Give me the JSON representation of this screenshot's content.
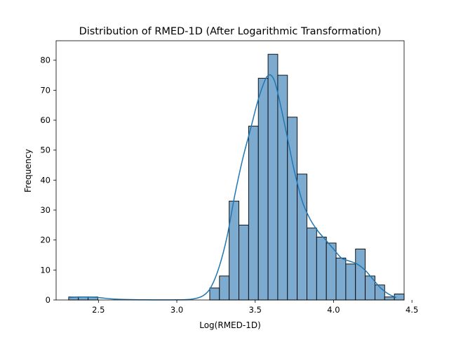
{
  "chart_data": {
    "type": "bar",
    "title": "Distribution of RMED-1D (After Logarithmic Transformation)",
    "xlabel": "Log(RMED-1D)",
    "ylabel": "Frequency",
    "xlim": [
      2.23,
      4.45
    ],
    "ylim": [
      0,
      86.5
    ],
    "xticks": [
      2.5,
      3.0,
      3.5,
      4.0,
      4.5
    ],
    "xtick_labels": [
      "2.5",
      "3.0",
      "3.5",
      "4.0",
      "4.5"
    ],
    "yticks": [
      0,
      10,
      20,
      30,
      40,
      50,
      60,
      70,
      80
    ],
    "ytick_labels": [
      "0",
      "10",
      "20",
      "30",
      "40",
      "50",
      "60",
      "70",
      "80"
    ],
    "grid": false,
    "bar_fill": "#7dabd0",
    "bar_edge": "#000000",
    "kde_color": "#1f77b4",
    "bins": [
      {
        "x0": 2.31,
        "x1": 2.372,
        "count": 1
      },
      {
        "x0": 2.372,
        "x1": 2.434,
        "count": 1
      },
      {
        "x0": 2.434,
        "x1": 2.496,
        "count": 1
      },
      {
        "x0": 3.21,
        "x1": 3.272,
        "count": 4
      },
      {
        "x0": 3.272,
        "x1": 3.334,
        "count": 8
      },
      {
        "x0": 3.334,
        "x1": 3.396,
        "count": 33
      },
      {
        "x0": 3.396,
        "x1": 3.458,
        "count": 25
      },
      {
        "x0": 3.458,
        "x1": 3.52,
        "count": 58
      },
      {
        "x0": 3.52,
        "x1": 3.582,
        "count": 74
      },
      {
        "x0": 3.582,
        "x1": 3.644,
        "count": 82
      },
      {
        "x0": 3.644,
        "x1": 3.706,
        "count": 75
      },
      {
        "x0": 3.706,
        "x1": 3.768,
        "count": 61
      },
      {
        "x0": 3.768,
        "x1": 3.83,
        "count": 42
      },
      {
        "x0": 3.83,
        "x1": 3.892,
        "count": 24
      },
      {
        "x0": 3.892,
        "x1": 3.954,
        "count": 21
      },
      {
        "x0": 3.954,
        "x1": 4.016,
        "count": 19
      },
      {
        "x0": 4.016,
        "x1": 4.078,
        "count": 14
      },
      {
        "x0": 4.078,
        "x1": 4.14,
        "count": 12
      },
      {
        "x0": 4.14,
        "x1": 4.202,
        "count": 17
      },
      {
        "x0": 4.202,
        "x1": 4.264,
        "count": 8
      },
      {
        "x0": 4.264,
        "x1": 4.326,
        "count": 5
      },
      {
        "x0": 4.326,
        "x1": 4.388,
        "count": 1
      },
      {
        "x0": 4.388,
        "x1": 4.45,
        "count": 2
      }
    ],
    "kde": {
      "x": [
        2.31,
        2.4,
        2.5,
        2.6,
        2.8,
        3.0,
        3.1,
        3.17,
        3.22,
        3.27,
        3.32,
        3.37,
        3.42,
        3.47,
        3.52,
        3.56,
        3.58,
        3.6,
        3.62,
        3.64,
        3.67,
        3.71,
        3.75,
        3.8,
        3.85,
        3.9,
        3.95,
        4.0,
        4.05,
        4.1,
        4.15,
        4.2,
        4.25,
        4.3,
        4.35,
        4.4
      ],
      "y": [
        0.8,
        1.0,
        0.8,
        0.3,
        0.05,
        0.05,
        0.3,
        1.5,
        4.5,
        11,
        21,
        35,
        47,
        57,
        67,
        73,
        74.8,
        75,
        73.5,
        70,
        63,
        53,
        43,
        33,
        27,
        23,
        20,
        17,
        14,
        13,
        12,
        10,
        7,
        4,
        2,
        0.8
      ]
    }
  }
}
